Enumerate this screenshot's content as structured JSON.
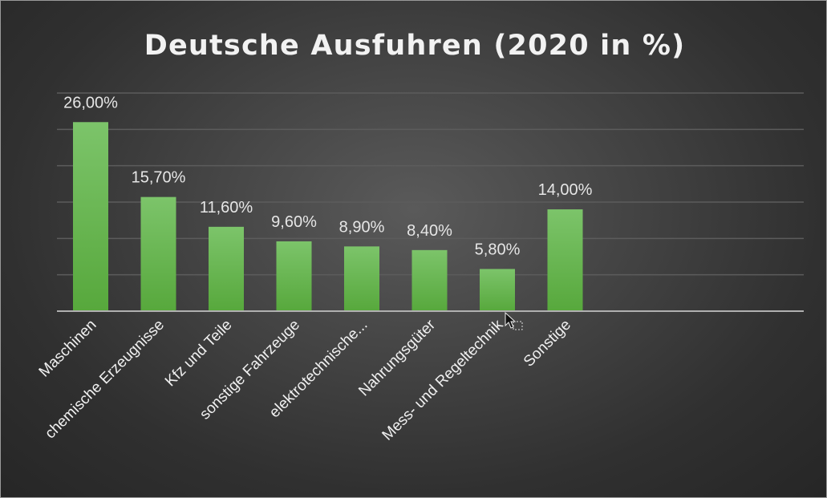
{
  "chart_data": {
    "type": "bar",
    "title": "Deutsche Ausfuhren (2020 in %)",
    "categories": [
      "Maschinen",
      "chemische Erzeugnisse",
      "Kfz und Teile",
      "sonstige Fahrzeuge",
      "elektrotechnische...",
      "Nahrungsgüter",
      "Mess- und Regeltechnik",
      "Sonstige"
    ],
    "values": [
      26.0,
      15.7,
      11.6,
      9.6,
      8.9,
      8.4,
      5.8,
      14.0
    ],
    "data_labels": [
      "26,00%",
      "15,70%",
      "11,60%",
      "9,60%",
      "8,90%",
      "8,40%",
      "5,80%",
      "14,00%"
    ],
    "ylim": [
      0,
      30
    ],
    "grid": true,
    "legend": "none",
    "colors": {
      "bar_top": "#7cc46a",
      "bar_bottom": "#57a83c"
    }
  }
}
